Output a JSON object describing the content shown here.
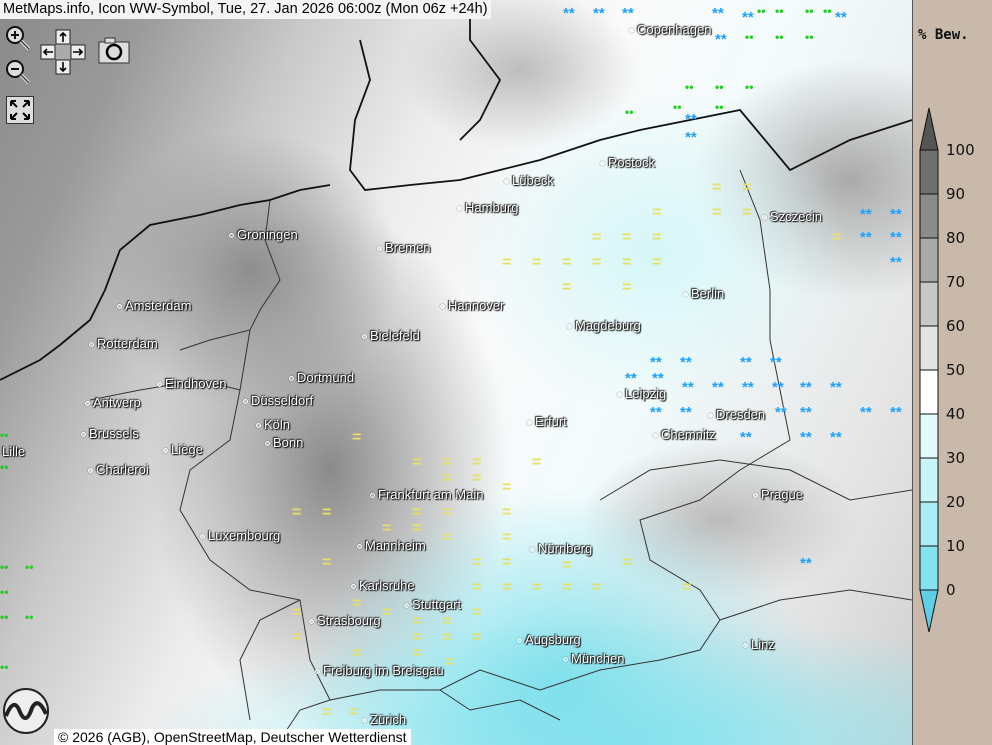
{
  "header": {
    "title": "MetMaps.info, Icon WW-Symbol, Tue, 27. Jan 2026 06:00z (Mon 06z +24h)"
  },
  "controls": {
    "zoom_in": "zoom-in",
    "zoom_out": "zoom-out",
    "pan": "pan-arrows",
    "snapshot": "camera",
    "fullscreen": "fullscreen"
  },
  "cities": [
    "Copenhagen",
    "Rostock",
    "Lübeck",
    "Hamburg",
    "Szczecin",
    "Groningen",
    "Bremen",
    "Berlin",
    "Amsterdam",
    "Hannover",
    "Magdeburg",
    "Bielefeld",
    "Rotterdam",
    "Dortmund",
    "Eindhoven",
    "Leipzig",
    "Antwerp",
    "Düsseldorf",
    "Dresden",
    "Erfurt",
    "Köln",
    "Brussels",
    "Chemnitz",
    "Bonn",
    "Liège",
    "Lille",
    "Charleroi",
    "Frankfurt am Main",
    "Prague",
    "Luxembourg",
    "Mannheim",
    "Nürnberg",
    "Karlsruhe",
    "Stuttgart",
    "Strasbourg",
    "Augsburg",
    "Linz",
    "München",
    "Freiburg im Breisgau",
    "Zürich"
  ],
  "weather_symbols": {
    "snow": "**",
    "fog": "=",
    "drizzle": "••"
  },
  "attribution": "© 2026 (AGB), OpenStreetMap, Deutscher Wetterdienst",
  "logo": "METMAPS",
  "legend": {
    "title": "% Bew.",
    "labels": [
      "100",
      "90",
      "80",
      "70",
      "60",
      "50",
      "40",
      "30",
      "20",
      "10",
      "0"
    ],
    "colors": [
      "#6f6f6f",
      "#8c8c8c",
      "#aaaaaa",
      "#c8c8c8",
      "#e4e4e4",
      "#ffffff",
      "#e2fafb",
      "#c9f5f8",
      "#a9eef4",
      "#84e3ee"
    ],
    "over_color": "#555555",
    "under_color": "#5fcfe8"
  }
}
